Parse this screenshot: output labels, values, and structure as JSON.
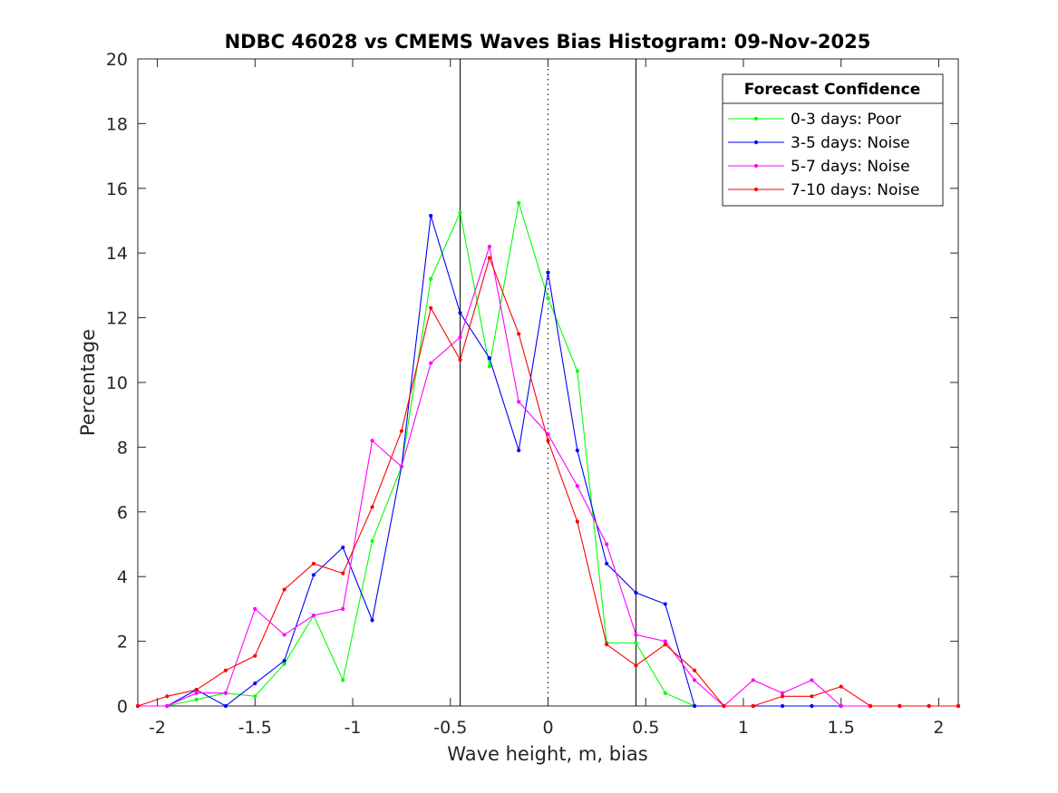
{
  "chart_data": {
    "type": "line",
    "title": "NDBC 46028 vs CMEMS Waves Bias Histogram: 09-Nov-2025",
    "xlabel": "Wave height, m, bias",
    "ylabel": "Percentage",
    "xlim": [
      -2.1,
      2.1
    ],
    "ylim": [
      0,
      20
    ],
    "xticks": [
      -2,
      -1.5,
      -1,
      -0.5,
      0,
      0.5,
      1,
      1.5,
      2
    ],
    "xtick_labels": [
      "-2",
      "-1.5",
      "-1",
      "-0.5",
      "0",
      "0.5",
      "1",
      "1.5",
      "2"
    ],
    "yticks": [
      0,
      2,
      4,
      6,
      8,
      10,
      12,
      14,
      16,
      18,
      20
    ],
    "ytick_labels": [
      "0",
      "2",
      "4",
      "6",
      "8",
      "10",
      "12",
      "14",
      "16",
      "18",
      "20"
    ],
    "grid": false,
    "legend": {
      "title": "Forecast Confidence",
      "location": "top-right"
    },
    "reference_lines": [
      {
        "x": -0.45,
        "style": "solid"
      },
      {
        "x": 0,
        "style": "dotted"
      },
      {
        "x": 0.45,
        "style": "solid"
      }
    ],
    "x": [
      -2.1,
      -1.95,
      -1.8,
      -1.65,
      -1.5,
      -1.35,
      -1.2,
      -1.05,
      -0.9,
      -0.75,
      -0.6,
      -0.45,
      -0.3,
      -0.15,
      0,
      0.15,
      0.3,
      0.45,
      0.6,
      0.75,
      0.9,
      1.05,
      1.2,
      1.35,
      1.5,
      1.65,
      1.8,
      1.95,
      2.1
    ],
    "series": [
      {
        "name": "0-3 days: Poor",
        "color": "#00ff00",
        "values": [
          0,
          0,
          0.2,
          0.4,
          0.3,
          1.3,
          2.8,
          0.8,
          5.1,
          7.4,
          13.2,
          15.25,
          10.5,
          15.55,
          12.6,
          10.35,
          1.95,
          1.95,
          0.4,
          0,
          0,
          0,
          0,
          0,
          0,
          0,
          0,
          0,
          0
        ]
      },
      {
        "name": "3-5 days: Noise",
        "color": "#0000ff",
        "values": [
          0,
          0,
          0.5,
          0,
          0.7,
          1.4,
          4.05,
          4.9,
          2.65,
          7.4,
          15.15,
          12.15,
          10.75,
          7.9,
          13.4,
          7.9,
          4.4,
          3.5,
          3.15,
          0,
          0,
          0,
          0,
          0,
          0,
          0,
          0,
          0,
          0
        ]
      },
      {
        "name": "5-7 days: Noise",
        "color": "#ff00ff",
        "values": [
          0,
          0,
          0.4,
          0.4,
          3.0,
          2.2,
          2.8,
          3.0,
          8.2,
          7.4,
          10.6,
          11.4,
          14.2,
          9.4,
          8.4,
          6.8,
          5.0,
          2.2,
          2.0,
          0.8,
          0,
          0.8,
          0.4,
          0.8,
          0,
          0,
          0,
          0,
          0
        ]
      },
      {
        "name": "7-10 days: Noise",
        "color": "#ff0000",
        "values": [
          0,
          0.3,
          0.5,
          1.1,
          1.55,
          3.6,
          4.4,
          4.1,
          6.15,
          8.5,
          12.3,
          10.7,
          13.85,
          11.5,
          8.2,
          5.7,
          1.9,
          1.25,
          1.9,
          1.1,
          0,
          0,
          0.3,
          0.3,
          0.6,
          0,
          0,
          0,
          0
        ]
      }
    ]
  }
}
